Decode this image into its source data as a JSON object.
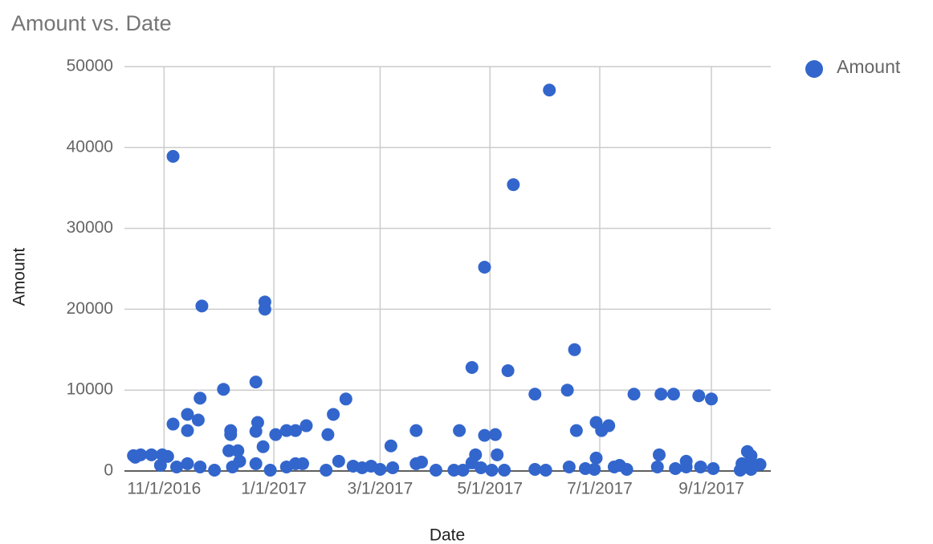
{
  "chart_data": {
    "type": "scatter",
    "title": "Amount vs. Date",
    "x_label": "Date",
    "y_label": "Amount",
    "x": [
      "2016-10-15",
      "2016-10-16",
      "2016-10-19",
      "2016-10-25",
      "2016-10-31",
      "2016-11-03",
      "2016-10-30",
      "2016-11-06",
      "2016-11-06",
      "2016-11-08",
      "2016-11-14",
      "2016-11-14",
      "2016-11-14",
      "2016-11-20",
      "2016-11-21",
      "2016-11-22",
      "2016-11-21",
      "2016-11-29",
      "2016-12-04",
      "2016-12-08",
      "2016-12-08",
      "2016-12-07",
      "2016-12-12",
      "2016-12-13",
      "2016-12-09",
      "2016-12-22",
      "2016-12-23",
      "2016-12-22",
      "2016-12-22",
      "2016-12-27",
      "2016-12-27",
      "2016-12-26",
      "2016-12-30",
      "2017-01-02",
      "2017-01-08",
      "2017-01-08",
      "2017-01-13",
      "2017-01-13",
      "2017-01-17",
      "2017-01-19",
      "2017-01-30",
      "2017-01-31",
      "2017-02-03",
      "2017-02-06",
      "2017-02-10",
      "2017-02-14",
      "2017-02-19",
      "2017-02-24",
      "2017-03-01",
      "2017-03-07",
      "2017-03-08",
      "2017-03-21",
      "2017-03-21",
      "2017-03-24",
      "2017-04-01",
      "2017-04-11",
      "2017-04-14",
      "2017-04-16",
      "2017-04-21",
      "2017-04-23",
      "2017-04-21",
      "2017-04-26",
      "2017-04-28",
      "2017-04-28",
      "2017-05-04",
      "2017-05-05",
      "2017-05-02",
      "2017-05-09",
      "2017-05-11",
      "2017-05-14",
      "2017-05-26",
      "2017-05-26",
      "2017-06-01",
      "2017-06-03",
      "2017-06-13",
      "2017-06-14",
      "2017-06-17",
      "2017-06-18",
      "2017-06-23",
      "2017-06-29",
      "2017-06-29",
      "2017-07-02",
      "2017-06-28",
      "2017-07-06",
      "2017-07-09",
      "2017-07-12",
      "2017-07-16",
      "2017-07-20",
      "2017-08-03",
      "2017-08-02",
      "2017-08-04",
      "2017-08-11",
      "2017-08-12",
      "2017-08-18",
      "2017-08-18",
      "2017-08-25",
      "2017-08-26",
      "2017-09-01",
      "2017-09-02",
      "2017-09-17",
      "2017-09-18",
      "2017-09-21",
      "2017-09-23",
      "2017-09-21",
      "2017-09-25",
      "2017-09-28",
      "2017-09-23"
    ],
    "series": [
      {
        "name": "Amount",
        "color": "#3366cc",
        "values": [
          1900,
          1700,
          2000,
          2000,
          2000,
          1800,
          700,
          38900,
          5800,
          500,
          7000,
          5000,
          900,
          6300,
          9000,
          20400,
          500,
          100,
          10100,
          5000,
          4500,
          2500,
          2500,
          1200,
          500,
          11000,
          6000,
          4900,
          900,
          20900,
          20000,
          3000,
          100,
          4500,
          5000,
          500,
          5000,
          900,
          900,
          5600,
          100,
          4500,
          7000,
          1200,
          8900,
          600,
          400,
          600,
          200,
          3100,
          400,
          5000,
          900,
          1100,
          100,
          100,
          5000,
          100,
          12800,
          2000,
          1000,
          400,
          25200,
          4400,
          4500,
          2000,
          100,
          100,
          12400,
          35400,
          9500,
          200,
          100,
          47100,
          10000,
          500,
          15000,
          5000,
          300,
          6000,
          1600,
          5000,
          200,
          5600,
          500,
          700,
          200,
          9500,
          2000,
          500,
          9500,
          9500,
          300,
          1200,
          500,
          9300,
          500,
          8900,
          300,
          100,
          900,
          2400,
          1900,
          900,
          700,
          800,
          200
        ]
      }
    ],
    "xlim": [
      "2016-10-10",
      "2017-10-04"
    ],
    "xticks": [
      {
        "value": "2016-11-01",
        "label": "11/1/2016"
      },
      {
        "value": "2017-01-01",
        "label": "1/1/2017"
      },
      {
        "value": "2017-03-01",
        "label": "3/1/2017"
      },
      {
        "value": "2017-05-01",
        "label": "5/1/2017"
      },
      {
        "value": "2017-07-01",
        "label": "7/1/2017"
      },
      {
        "value": "2017-09-01",
        "label": "9/1/2017"
      }
    ],
    "ylim": [
      0,
      50000
    ],
    "yticks": [
      0,
      10000,
      20000,
      30000,
      40000,
      50000
    ],
    "grid": true,
    "legend": "right"
  }
}
